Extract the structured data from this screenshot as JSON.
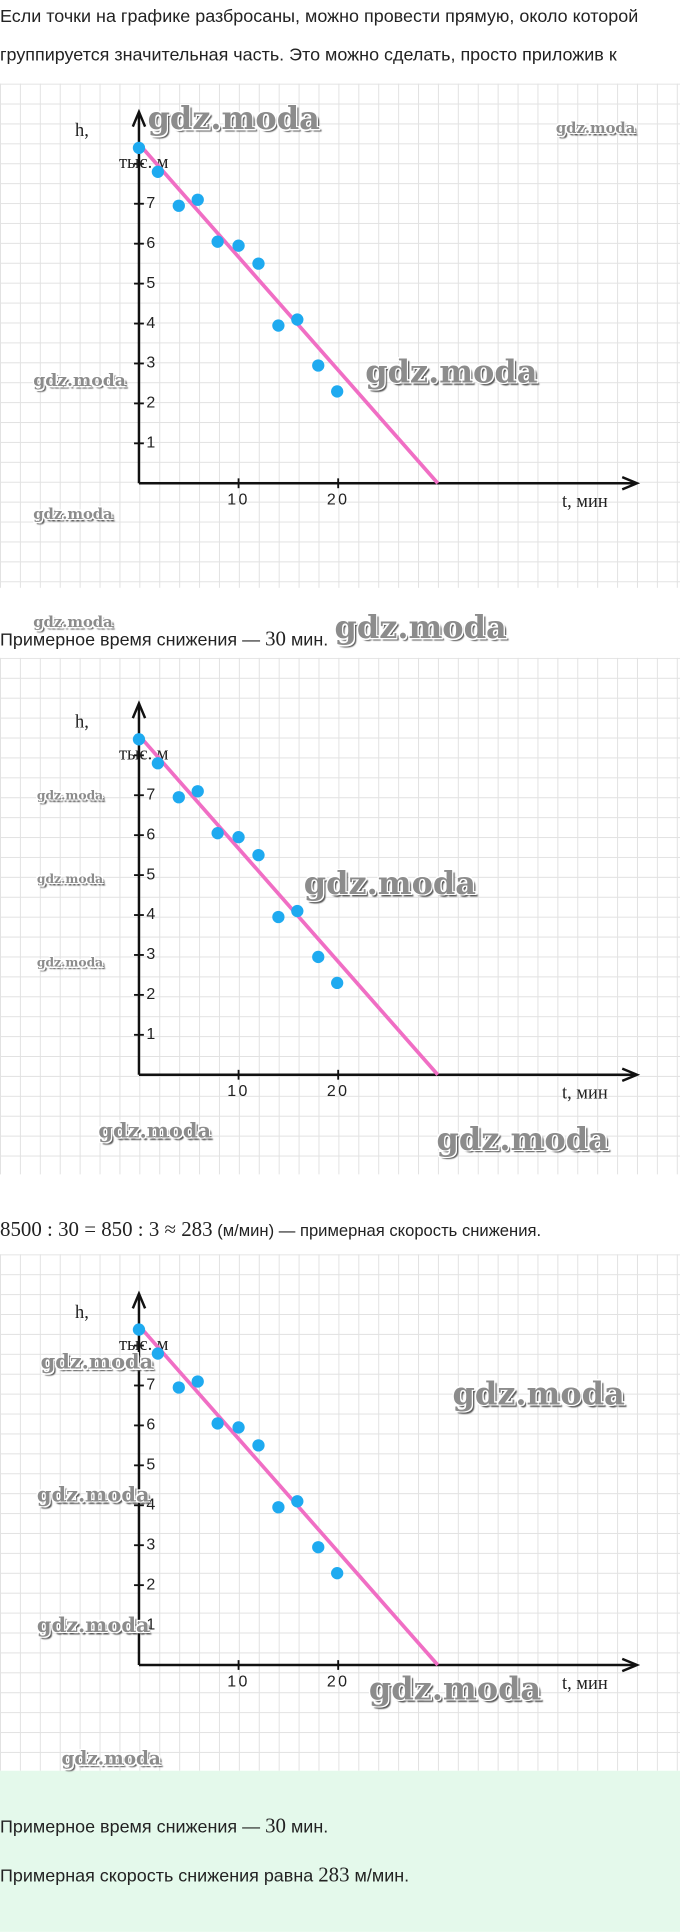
{
  "intro": {
    "lines": [
      "Если точки на графике разбросаны, можно провести прямую, около которой",
      "группируется значительная часть. Это можно сделать, просто приложив к"
    ]
  },
  "note_time": {
    "before": "Примерное время снижения — ",
    "math": "30",
    "after": " мин."
  },
  "note_speed": {
    "math": "8500 : 30 = 850 : 3 ≈ 283",
    "after": " (м/мин) — примерная скорость снижения."
  },
  "answer": {
    "time": {
      "before": "Примерное время снижения — ",
      "math": "30",
      "after": " мин."
    },
    "speed": {
      "before": "Примерная скорость снижения равна ",
      "math": "283",
      "after": " м/мин."
    }
  },
  "chart_data": {
    "type": "scatter",
    "x": [
      0,
      1.9,
      4,
      5.9,
      7.9,
      10,
      12,
      14,
      15.9,
      18,
      19.9
    ],
    "values": [
      8.4,
      7.8,
      6.95,
      7.1,
      6.05,
      5.95,
      5.5,
      3.95,
      4.1,
      2.95,
      2.3
    ],
    "color": "#1eaaf0",
    "trend": {
      "x": [
        0,
        30
      ],
      "values": [
        8.5,
        0
      ],
      "color": "#f06ec4"
    },
    "xlim": [
      0,
      50
    ],
    "ylim": [
      0,
      9.3
    ],
    "xticks": [
      10,
      20
    ],
    "yticks": [
      1,
      2,
      3,
      4,
      5,
      6,
      7,
      {
        "value": 8,
        "label": "тыс. м"
      }
    ],
    "y_label": "h,",
    "x_label": "t, мин"
  },
  "watermarks": [
    "gdz.moda",
    "gdz.moda",
    "gdz.moda",
    "gdz.moda",
    "gdz.moda",
    "gdz.moda",
    "gdz.moda",
    "gdz.moda",
    "gdz.moda",
    "gdz.moda",
    "gdz.moda",
    "gdz.moda",
    "gdz.moda",
    "gdz.moda",
    "gdz.moda",
    "gdz.moda",
    "gdz.moda",
    "gdz.moda",
    "gdz.moda"
  ]
}
